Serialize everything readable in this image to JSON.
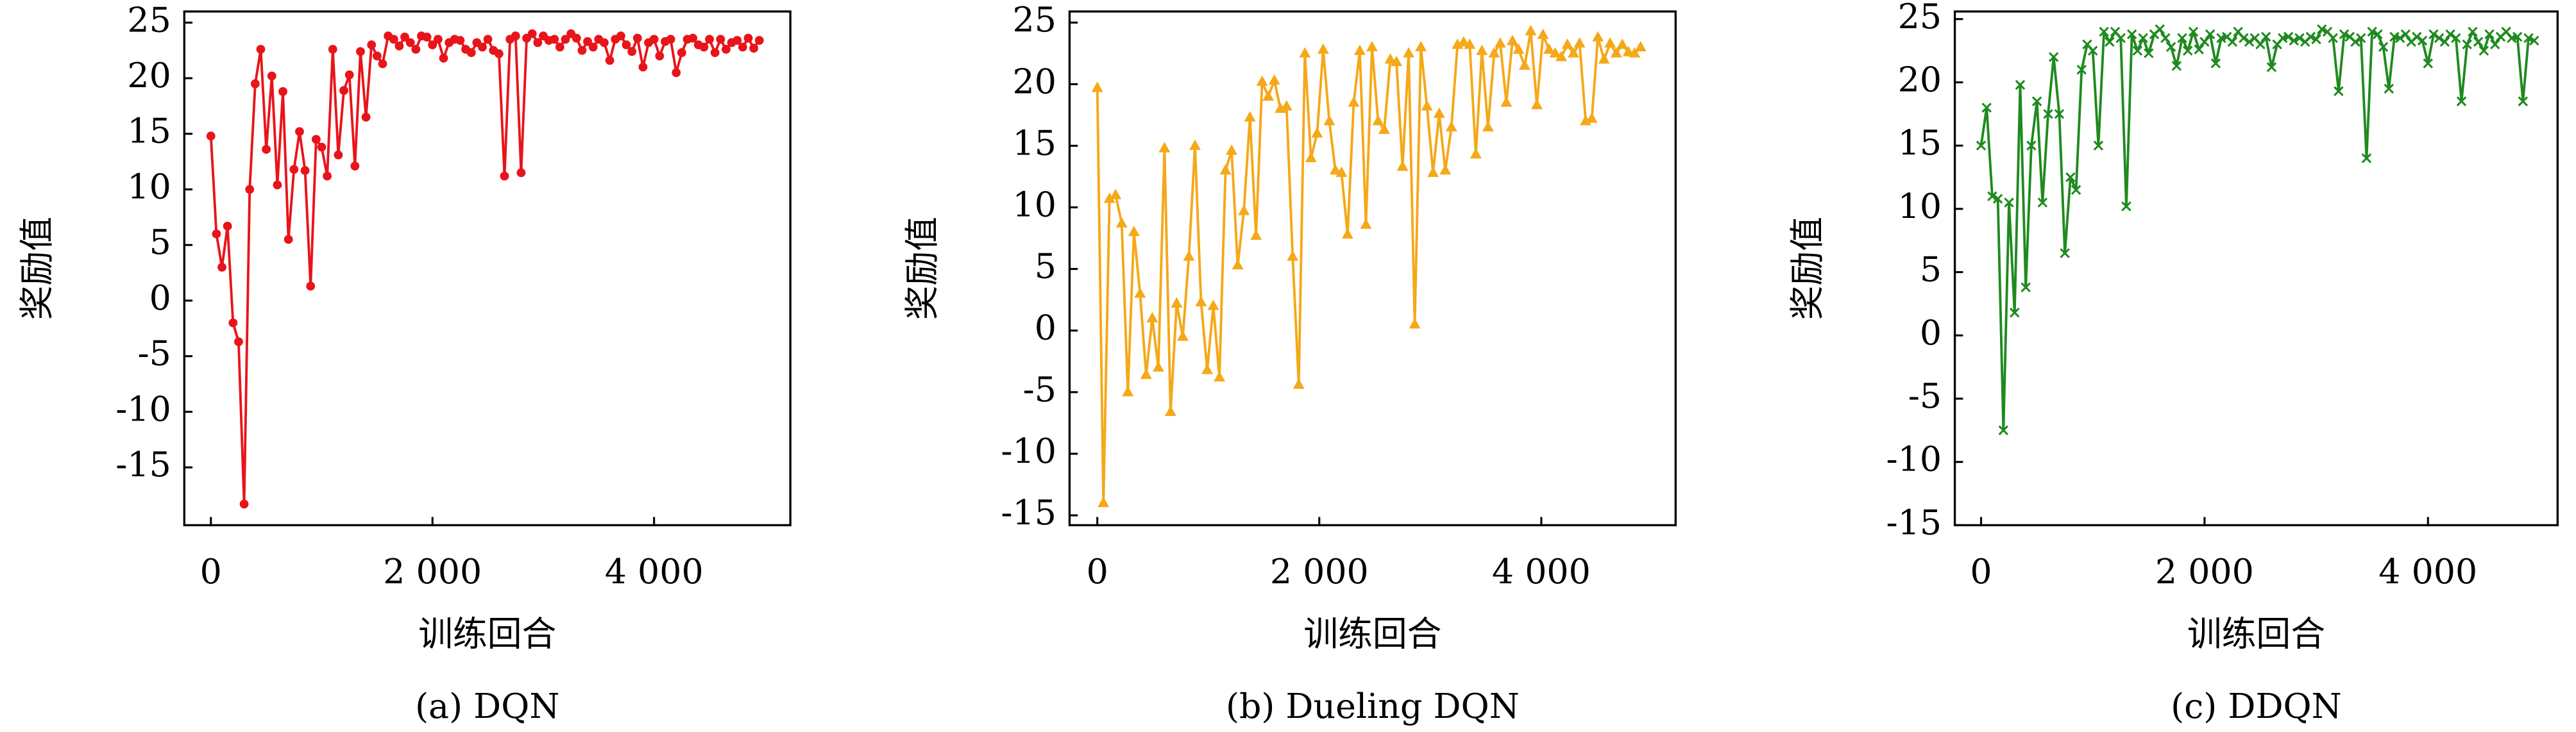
{
  "chart_data": [
    {
      "type": "line",
      "title": "(a) DQN",
      "xlabel": "训练回合",
      "ylabel": "奖励值",
      "color": "#e8141a",
      "marker": "circle",
      "xlim": [
        -240,
        5230
      ],
      "ylim": [
        -20.2,
        26
      ],
      "xticks": [
        0,
        {
          "value": 2000,
          "label": "2 000"
        },
        {
          "value": 4000,
          "label": "4 000"
        }
      ],
      "yticks": [
        -15,
        -10,
        -5,
        0,
        5,
        10,
        15,
        20,
        25
      ],
      "x": [
        0,
        50,
        100,
        150,
        200,
        250,
        300,
        350,
        400,
        450,
        500,
        550,
        600,
        650,
        700,
        750,
        800,
        850,
        900,
        950,
        1000,
        1050,
        1100,
        1150,
        1200,
        1250,
        1300,
        1350,
        1400,
        1450,
        1500,
        1550,
        1600,
        1650,
        1700,
        1750,
        1800,
        1850,
        1900,
        1950,
        2000,
        2050,
        2100,
        2150,
        2200,
        2250,
        2300,
        2350,
        2400,
        2450,
        2500,
        2550,
        2600,
        2650,
        2700,
        2750,
        2800,
        2850,
        2900,
        2950,
        3000,
        3050,
        3100,
        3150,
        3200,
        3250,
        3300,
        3350,
        3400,
        3450,
        3500,
        3550,
        3600,
        3650,
        3700,
        3750,
        3800,
        3850,
        3900,
        3950,
        4000,
        4050,
        4100,
        4150,
        4200,
        4250,
        4300,
        4350,
        4400,
        4450,
        4500,
        4550,
        4600,
        4650,
        4700,
        4750,
        4800,
        4850,
        4900,
        4950
      ],
      "values": [
        14.8,
        6,
        3,
        6.7,
        -2,
        -3.7,
        -18.3,
        10,
        19.5,
        22.6,
        13.6,
        20.2,
        10.4,
        18.8,
        5.5,
        11.8,
        15.2,
        11.7,
        1.3,
        14.5,
        13.8,
        11.2,
        22.6,
        13.1,
        18.9,
        20.3,
        12.1,
        22.4,
        16.5,
        23,
        22,
        21.3,
        23.8,
        23.5,
        22.9,
        23.7,
        23.2,
        22.6,
        23.8,
        23.7,
        23,
        23.5,
        21.8,
        23.2,
        23.5,
        23.4,
        22.6,
        22.3,
        23.2,
        22.8,
        23.5,
        22.5,
        22.2,
        11.2,
        23.5,
        23.8,
        11.5,
        23.6,
        24,
        23.2,
        23.8,
        23.4,
        23.5,
        22.8,
        23.5,
        24,
        23.6,
        22.5,
        23.3,
        22.8,
        23.5,
        23.2,
        21.6,
        23.5,
        23.8,
        23,
        22.4,
        23.6,
        21,
        23.2,
        23.5,
        22,
        23.3,
        23.5,
        20.5,
        22.3,
        23.5,
        23.6,
        23,
        22.8,
        23.5,
        22.3,
        23.5,
        22.6,
        23.2,
        23.4,
        22.8,
        23.6,
        22.7,
        23.4
      ]
    },
    {
      "type": "line",
      "title": "(b) Dueling DQN",
      "xlabel": "训练回合",
      "ylabel": "奖励值",
      "color": "#f5a818",
      "marker": "triangle",
      "xlim": [
        -250,
        5210
      ],
      "ylim": [
        -15.8,
        25.9
      ],
      "xticks": [
        0,
        {
          "value": 2000,
          "label": "2 000"
        },
        {
          "value": 4000,
          "label": "4 000"
        }
      ],
      "yticks": [
        -15,
        -10,
        -5,
        0,
        5,
        10,
        15,
        20,
        25
      ],
      "x": [
        0,
        55,
        110,
        165,
        220,
        275,
        330,
        385,
        440,
        495,
        550,
        605,
        660,
        715,
        770,
        825,
        880,
        935,
        990,
        1045,
        1100,
        1155,
        1210,
        1265,
        1320,
        1375,
        1430,
        1485,
        1540,
        1595,
        1650,
        1705,
        1760,
        1815,
        1870,
        1925,
        1980,
        2035,
        2090,
        2145,
        2200,
        2255,
        2310,
        2365,
        2420,
        2475,
        2530,
        2585,
        2640,
        2695,
        2750,
        2805,
        2860,
        2915,
        2970,
        3025,
        3080,
        3135,
        3190,
        3245,
        3300,
        3355,
        3410,
        3465,
        3520,
        3575,
        3630,
        3685,
        3740,
        3795,
        3850,
        3905,
        3960,
        4015,
        4070,
        4125,
        4180,
        4235,
        4290,
        4345,
        4400,
        4455,
        4510,
        4565,
        4620,
        4675,
        4730,
        4785,
        4840,
        4895
      ],
      "values": [
        19.7,
        -14,
        10.7,
        11,
        8.7,
        -5,
        8,
        3,
        -3.6,
        1,
        -3,
        14.8,
        -6.6,
        2.2,
        -0.5,
        6,
        15,
        2.3,
        -3.2,
        2,
        -3.8,
        13,
        14.6,
        5.3,
        9.7,
        17.3,
        7.7,
        20.2,
        19,
        20.3,
        18,
        18.2,
        6,
        -4.4,
        22.5,
        14,
        16,
        22.8,
        17,
        13,
        12.8,
        7.8,
        18.5,
        22.7,
        8.6,
        23,
        17,
        16.3,
        22,
        21.8,
        13.3,
        22.5,
        0.5,
        23,
        18.2,
        12.8,
        17.6,
        13,
        16.5,
        23.2,
        23.4,
        23.2,
        14.3,
        22.7,
        16.5,
        22.5,
        23.3,
        18.5,
        23.5,
        22.8,
        21.5,
        24.3,
        18.3,
        24,
        22.8,
        22.5,
        22.2,
        23.2,
        22.5,
        23.3,
        17,
        17.2,
        23.8,
        22,
        23.3,
        22.5,
        23.2,
        22.6,
        22.5,
        23
      ]
    },
    {
      "type": "line",
      "title": "(c) DDQN",
      "xlabel": "训练回合",
      "ylabel": "奖励值",
      "color": "#1f8a1f",
      "marker": "cross",
      "xlim": [
        -235,
        5160
      ],
      "ylim": [
        -15,
        25.6
      ],
      "xticks": [
        0,
        {
          "value": 2000,
          "label": "2 000"
        },
        {
          "value": 4000,
          "label": "4 000"
        }
      ],
      "yticks": [
        -15,
        -10,
        -5,
        0,
        5,
        10,
        15,
        20,
        25
      ],
      "x": [
        0,
        50,
        100,
        150,
        200,
        250,
        300,
        350,
        400,
        450,
        500,
        550,
        600,
        650,
        700,
        750,
        800,
        850,
        900,
        950,
        1000,
        1050,
        1100,
        1150,
        1200,
        1250,
        1300,
        1350,
        1400,
        1450,
        1500,
        1550,
        1600,
        1650,
        1700,
        1750,
        1800,
        1850,
        1900,
        1950,
        2000,
        2050,
        2100,
        2150,
        2200,
        2250,
        2300,
        2350,
        2400,
        2450,
        2500,
        2550,
        2600,
        2650,
        2700,
        2750,
        2800,
        2850,
        2900,
        2950,
        3000,
        3050,
        3100,
        3150,
        3200,
        3250,
        3300,
        3350,
        3400,
        3450,
        3500,
        3550,
        3600,
        3650,
        3700,
        3750,
        3800,
        3850,
        3900,
        3950,
        4000,
        4050,
        4100,
        4150,
        4200,
        4250,
        4300,
        4350,
        4400,
        4450,
        4500,
        4550,
        4600,
        4650,
        4700,
        4750,
        4800,
        4850,
        4900,
        4950
      ],
      "values": [
        15,
        18,
        11,
        10.8,
        -7.5,
        10.5,
        1.8,
        19.8,
        3.8,
        15,
        18.5,
        10.5,
        17.5,
        22,
        17.5,
        6.5,
        12.5,
        11.5,
        21,
        23,
        22.5,
        15,
        24,
        23.2,
        24,
        23.5,
        10.2,
        23.8,
        22.5,
        23.5,
        22.3,
        23.8,
        24.2,
        23.5,
        22.8,
        21.3,
        23.5,
        22.5,
        24,
        22.6,
        23.2,
        23.8,
        21.5,
        23.5,
        23.6,
        23.2,
        24,
        23.5,
        23.2,
        23.5,
        23,
        23.6,
        21.2,
        23,
        23.5,
        23.6,
        23.3,
        23.5,
        23.2,
        23.6,
        23.4,
        24.2,
        24,
        23.5,
        19.3,
        23.8,
        23.6,
        23.2,
        23.5,
        14,
        24,
        23.8,
        22.8,
        19.5,
        23.6,
        23.5,
        23.8,
        23.2,
        23.6,
        23.3,
        21.5,
        23.8,
        23.5,
        23.2,
        23.8,
        23.5,
        18.5,
        23,
        24,
        23.2,
        22.5,
        23.8,
        23,
        23.6,
        24,
        23.5,
        23.6,
        18.5,
        23.5,
        23.3
      ]
    }
  ]
}
